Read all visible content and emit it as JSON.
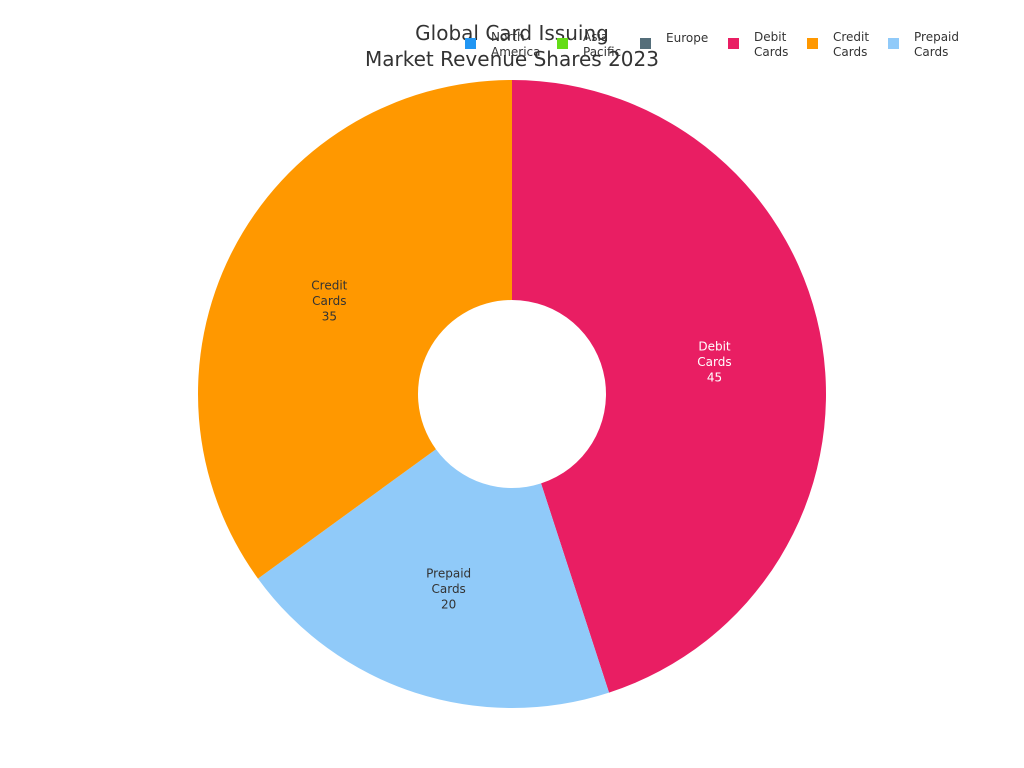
{
  "chart_data": {
    "type": "pie",
    "title_lines": [
      "Global Card Issuing",
      "Market Revenue Shares 2023"
    ],
    "donut": true,
    "slices": [
      {
        "label_lines": [
          "Debit",
          "Cards"
        ],
        "value": 45,
        "color": "#E91E63",
        "label_color": "#ffffff"
      },
      {
        "label_lines": [
          "Prepaid",
          "Cards"
        ],
        "value": 20,
        "color": "#90CAF9",
        "label_color": "#333333"
      },
      {
        "label_lines": [
          "Credit",
          "Cards"
        ],
        "value": 35,
        "color": "#FF9800",
        "label_color": "#333333"
      }
    ],
    "legend": {
      "placement": "top-right",
      "entries": [
        {
          "label_lines": [
            "North",
            "America"
          ],
          "color": "#2196F3"
        },
        {
          "label_lines": [
            "Asia",
            "Pacific"
          ],
          "color": "#64DD17"
        },
        {
          "label_lines": [
            "Europe"
          ],
          "color": "#546E7A"
        },
        {
          "label_lines": [
            "Debit",
            "Cards"
          ],
          "color": "#E91E63"
        },
        {
          "label_lines": [
            "Credit",
            "Cards"
          ],
          "color": "#FF9800"
        },
        {
          "label_lines": [
            "Prepaid",
            "Cards"
          ],
          "color": "#90CAF9"
        }
      ]
    }
  }
}
